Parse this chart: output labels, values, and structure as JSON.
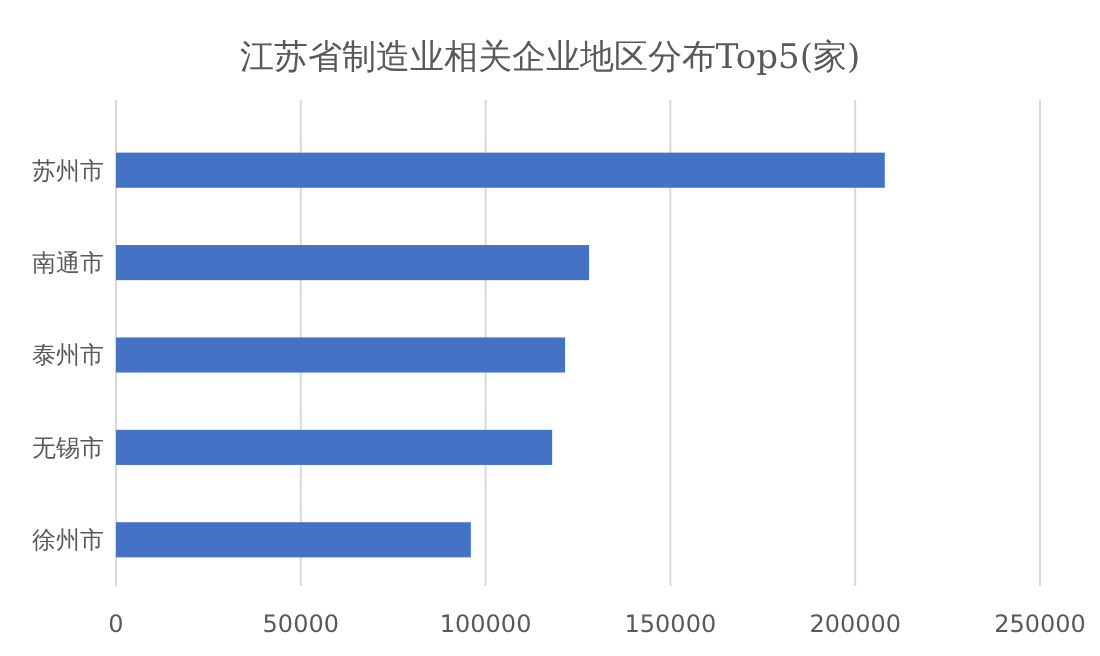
{
  "chart_data": {
    "type": "bar",
    "orientation": "horizontal",
    "title": "江苏省制造业相关企业地区分布Top5(家)",
    "categories": [
      "苏州市",
      "南通市",
      "泰州市",
      "无锡市",
      "徐州市"
    ],
    "values": [
      208000,
      128000,
      121500,
      118000,
      96000
    ],
    "color": "#4472c4",
    "xlim": [
      0,
      250000
    ],
    "xticks": [
      0,
      50000,
      100000,
      150000,
      200000,
      250000
    ],
    "grid": "x"
  }
}
